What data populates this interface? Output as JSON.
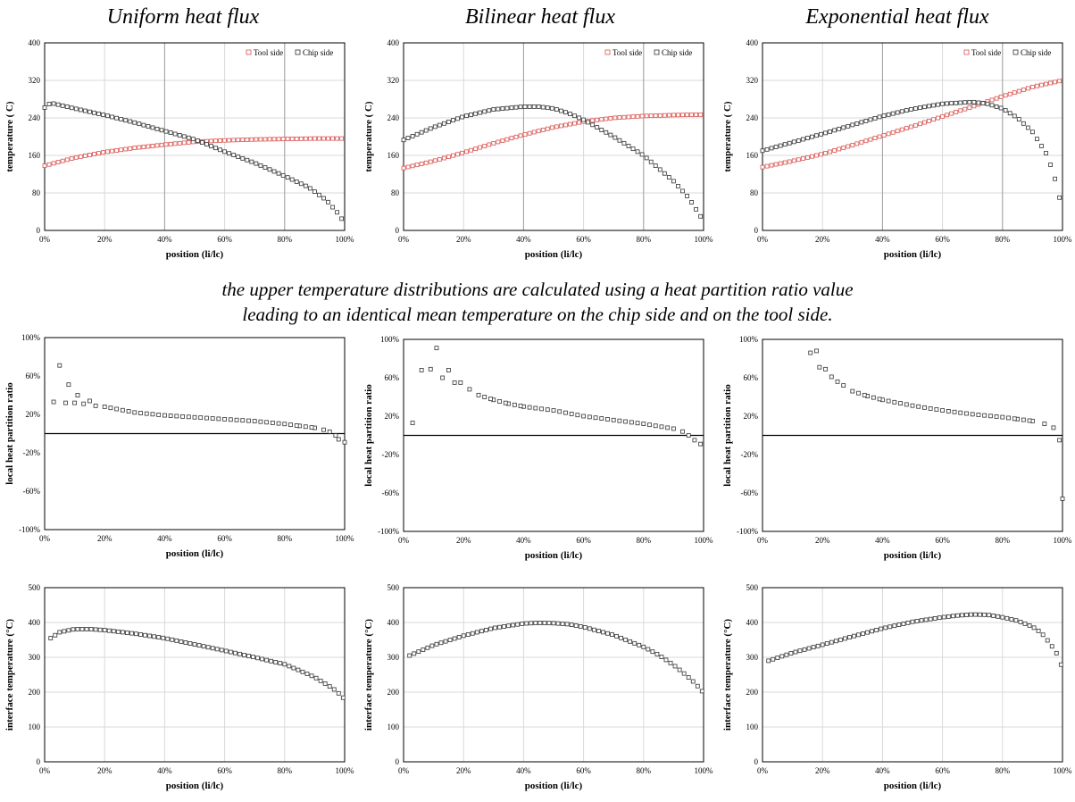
{
  "column_titles": [
    "Uniform heat flux",
    "Bilinear heat flux",
    "Exponential heat flux"
  ],
  "caption": {
    "line1": "the upper temperature distributions are calculated using a heat partition ratio value",
    "line2": "leading to an identical mean temperature on the chip side and on the tool side."
  },
  "colors": {
    "tool_side": "#d9534f",
    "chip_side": "#333333",
    "grid": "#d9d9d9",
    "axis": "#000000"
  },
  "chart_data": [
    {
      "type": "scatter",
      "xlabel": "position (li/lc)",
      "ylabel": "temperature ( C)",
      "xlim": [
        0,
        1
      ],
      "ylim": [
        0,
        400
      ],
      "yticks": [
        0,
        80,
        160,
        240,
        320,
        400
      ],
      "xticks": [
        0,
        0.2,
        0.4,
        0.6,
        0.8,
        1.0
      ],
      "xtick_labels": [
        "0%",
        "20%",
        "40%",
        "60%",
        "80%",
        "100%"
      ],
      "ytick_labels": [
        "0",
        "80",
        "160",
        "240",
        "320",
        "400"
      ],
      "legend_position": "top-right",
      "grid": true,
      "series": [
        {
          "name": "Tool side",
          "x": [
            0,
            0.1,
            0.2,
            0.3,
            0.4,
            0.5,
            0.6,
            0.7,
            0.8,
            0.9,
            1.0
          ],
          "y": [
            138,
            155,
            167,
            176,
            183,
            189,
            192,
            194,
            195,
            196,
            196
          ]
        },
        {
          "name": "Chip side",
          "x": [
            0,
            0.02,
            0.1,
            0.2,
            0.3,
            0.4,
            0.5,
            0.6,
            0.7,
            0.8,
            0.88,
            0.94,
            0.98,
            1.0
          ],
          "y": [
            262,
            272,
            260,
            246,
            230,
            212,
            194,
            168,
            144,
            116,
            92,
            64,
            35,
            15
          ]
        }
      ]
    },
    {
      "type": "scatter",
      "xlabel": "position (li/lc)",
      "ylabel": "temperature ( C)",
      "xlim": [
        0,
        1
      ],
      "ylim": [
        0,
        400
      ],
      "yticks": [
        0,
        80,
        160,
        240,
        320,
        400
      ],
      "xticks": [
        0,
        0.2,
        0.4,
        0.6,
        0.8,
        1.0
      ],
      "xtick_labels": [
        "0%",
        "20%",
        "40%",
        "60%",
        "80%",
        "100%"
      ],
      "ytick_labels": [
        "0",
        "80",
        "160",
        "240",
        "320",
        "400"
      ],
      "legend_position": "top-right",
      "grid": true,
      "series": [
        {
          "name": "Tool side",
          "x": [
            0,
            0.1,
            0.2,
            0.3,
            0.4,
            0.5,
            0.6,
            0.7,
            0.8,
            0.9,
            1.0
          ],
          "y": [
            133,
            148,
            166,
            186,
            204,
            220,
            232,
            240,
            244,
            246,
            247
          ]
        },
        {
          "name": "Chip side",
          "x": [
            0,
            0.1,
            0.2,
            0.3,
            0.4,
            0.45,
            0.5,
            0.55,
            0.6,
            0.7,
            0.8,
            0.9,
            0.95,
            1.0
          ],
          "y": [
            193,
            220,
            243,
            258,
            264,
            264,
            260,
            250,
            236,
            200,
            160,
            105,
            70,
            20
          ]
        }
      ]
    },
    {
      "type": "scatter",
      "xlabel": "position (li/lc)",
      "ylabel": "temperature ( C)",
      "xlim": [
        0,
        1
      ],
      "ylim": [
        0,
        400
      ],
      "yticks": [
        0,
        80,
        160,
        240,
        320,
        400
      ],
      "xticks": [
        0,
        0.2,
        0.4,
        0.6,
        0.8,
        1.0
      ],
      "xtick_labels": [
        "0%",
        "20%",
        "40%",
        "60%",
        "80%",
        "100%"
      ],
      "ytick_labels": [
        "0",
        "80",
        "160",
        "240",
        "320",
        "400"
      ],
      "legend_position": "top-right",
      "grid": true,
      "series": [
        {
          "name": "Tool side",
          "x": [
            0,
            0.1,
            0.2,
            0.3,
            0.4,
            0.5,
            0.6,
            0.7,
            0.8,
            0.9,
            1.0
          ],
          "y": [
            135,
            148,
            163,
            182,
            202,
            222,
            243,
            264,
            286,
            306,
            320
          ]
        },
        {
          "name": "Chip side",
          "x": [
            0,
            0.1,
            0.2,
            0.3,
            0.4,
            0.5,
            0.6,
            0.7,
            0.75,
            0.8,
            0.85,
            0.9,
            0.95,
            0.98,
            1.0
          ],
          "y": [
            170,
            188,
            206,
            225,
            244,
            259,
            270,
            274,
            270,
            260,
            240,
            210,
            160,
            100,
            40
          ]
        }
      ]
    },
    {
      "type": "scatter",
      "xlabel": "position (li/lc)",
      "ylabel": "local heat partition ratio",
      "xlim": [
        0,
        1
      ],
      "ylim": [
        -1,
        1
      ],
      "yticks": [
        -1,
        -0.6,
        -0.2,
        0.2,
        0.6,
        1
      ],
      "xticks": [
        0,
        0.2,
        0.4,
        0.6,
        0.8,
        1.0
      ],
      "xtick_labels": [
        "0%",
        "20%",
        "40%",
        "60%",
        "80%",
        "100%"
      ],
      "ytick_labels": [
        "-100%",
        "-60%",
        "-20%",
        "20%",
        "60%",
        "100%"
      ],
      "grid": false,
      "zero_line": true,
      "series": [
        {
          "x": [
            0.03,
            0.05,
            0.07,
            0.08,
            0.1,
            0.11,
            0.13,
            0.15,
            0.17,
            0.2,
            0.3,
            0.4,
            0.5,
            0.6,
            0.7,
            0.8,
            0.85,
            0.9,
            0.93,
            0.95,
            0.97,
            0.98,
            1.0
          ],
          "y": [
            0.33,
            0.71,
            0.32,
            0.51,
            0.32,
            0.4,
            0.31,
            0.34,
            0.29,
            0.28,
            0.22,
            0.19,
            0.17,
            0.15,
            0.13,
            0.1,
            0.08,
            0.06,
            0.04,
            0.02,
            -0.02,
            -0.06,
            -0.09
          ]
        }
      ]
    },
    {
      "type": "scatter",
      "xlabel": "position (li/lc)",
      "ylabel": "local heat partition ratio",
      "xlim": [
        0,
        1
      ],
      "ylim": [
        -1,
        1
      ],
      "yticks": [
        -1,
        -0.6,
        -0.2,
        0.2,
        0.6,
        1
      ],
      "xticks": [
        0,
        0.2,
        0.4,
        0.6,
        0.8,
        1.0
      ],
      "xtick_labels": [
        "0%",
        "20%",
        "40%",
        "60%",
        "80%",
        "100%"
      ],
      "ytick_labels": [
        "-100%",
        "-60%",
        "-20%",
        "20%",
        "60%",
        "100%"
      ],
      "grid": false,
      "zero_line": true,
      "series": [
        {
          "x": [
            0.03,
            0.06,
            0.09,
            0.11,
            0.13,
            0.15,
            0.17,
            0.19,
            0.22,
            0.25,
            0.3,
            0.35,
            0.4,
            0.5,
            0.6,
            0.7,
            0.8,
            0.9,
            0.93,
            0.95,
            0.97,
            0.99
          ],
          "y": [
            0.13,
            0.68,
            0.69,
            0.91,
            0.6,
            0.68,
            0.55,
            0.55,
            0.48,
            0.42,
            0.37,
            0.33,
            0.3,
            0.26,
            0.2,
            0.16,
            0.12,
            0.07,
            0.04,
            0.0,
            -0.05,
            -0.09
          ]
        }
      ]
    },
    {
      "type": "scatter",
      "xlabel": "position (li/lc)",
      "ylabel": "local heat partition ratio",
      "xlim": [
        0,
        1
      ],
      "ylim": [
        -1,
        1
      ],
      "yticks": [
        -1,
        -0.6,
        -0.2,
        0.2,
        0.6,
        1
      ],
      "xticks": [
        0,
        0.2,
        0.4,
        0.6,
        0.8,
        1.0
      ],
      "xtick_labels": [
        "0%",
        "20%",
        "40%",
        "60%",
        "80%",
        "100%"
      ],
      "ytick_labels": [
        "-100%",
        "-60%",
        "-20%",
        "20%",
        "60%",
        "100%"
      ],
      "grid": false,
      "zero_line": true,
      "series": [
        {
          "x": [
            0.16,
            0.18,
            0.19,
            0.21,
            0.23,
            0.25,
            0.27,
            0.3,
            0.35,
            0.4,
            0.5,
            0.6,
            0.7,
            0.8,
            0.85,
            0.9,
            0.94,
            0.97,
            0.99,
            1.0
          ],
          "y": [
            0.86,
            0.88,
            0.71,
            0.69,
            0.61,
            0.56,
            0.52,
            0.46,
            0.41,
            0.37,
            0.31,
            0.26,
            0.22,
            0.19,
            0.17,
            0.15,
            0.12,
            0.08,
            -0.05,
            -0.66
          ]
        }
      ]
    },
    {
      "type": "scatter",
      "xlabel": "position (li/lc)",
      "ylabel": "interface temperature (°C)",
      "xlim": [
        0,
        1
      ],
      "ylim": [
        0,
        500
      ],
      "yticks": [
        0,
        100,
        200,
        300,
        400,
        500
      ],
      "xticks": [
        0,
        0.2,
        0.4,
        0.6,
        0.8,
        1.0
      ],
      "xtick_labels": [
        "0%",
        "20%",
        "40%",
        "60%",
        "80%",
        "100%"
      ],
      "ytick_labels": [
        "0",
        "100",
        "200",
        "300",
        "400",
        "500"
      ],
      "grid": true,
      "series": [
        {
          "x": [
            0.02,
            0.05,
            0.1,
            0.15,
            0.2,
            0.3,
            0.4,
            0.5,
            0.6,
            0.7,
            0.8,
            0.85,
            0.9,
            0.94,
            0.97,
            1.0
          ],
          "y": [
            355,
            372,
            381,
            381,
            378,
            368,
            355,
            337,
            319,
            300,
            280,
            262,
            243,
            222,
            205,
            180
          ]
        }
      ]
    },
    {
      "type": "scatter",
      "xlabel": "position (li/lc)",
      "ylabel": "interface temperature (°C)",
      "xlim": [
        0,
        1
      ],
      "ylim": [
        0,
        500
      ],
      "yticks": [
        0,
        100,
        200,
        300,
        400,
        500
      ],
      "xticks": [
        0,
        0.2,
        0.4,
        0.6,
        0.8,
        1.0
      ],
      "xtick_labels": [
        "0%",
        "20%",
        "40%",
        "60%",
        "80%",
        "100%"
      ],
      "ytick_labels": [
        "0",
        "100",
        "200",
        "300",
        "400",
        "500"
      ],
      "grid": true,
      "series": [
        {
          "x": [
            0.02,
            0.1,
            0.2,
            0.3,
            0.4,
            0.45,
            0.5,
            0.55,
            0.6,
            0.7,
            0.8,
            0.85,
            0.9,
            0.94,
            0.97,
            1.0
          ],
          "y": [
            305,
            335,
            362,
            384,
            397,
            399,
            398,
            395,
            387,
            364,
            330,
            307,
            278,
            250,
            227,
            198
          ]
        }
      ]
    },
    {
      "type": "scatter",
      "xlabel": "position (li/lc)",
      "ylabel": "interface temperature (°C)",
      "xlim": [
        0,
        1
      ],
      "ylim": [
        0,
        500
      ],
      "yticks": [
        0,
        100,
        200,
        300,
        400,
        500
      ],
      "xticks": [
        0,
        0.2,
        0.4,
        0.6,
        0.8,
        1.0
      ],
      "xtick_labels": [
        "0%",
        "20%",
        "40%",
        "60%",
        "80%",
        "100%"
      ],
      "ytick_labels": [
        "0",
        "100",
        "200",
        "300",
        "400",
        "500"
      ],
      "grid": true,
      "series": [
        {
          "x": [
            0.02,
            0.1,
            0.2,
            0.3,
            0.4,
            0.5,
            0.6,
            0.65,
            0.7,
            0.75,
            0.8,
            0.85,
            0.9,
            0.93,
            0.96,
            0.98,
            1.0
          ],
          "y": [
            290,
            313,
            336,
            360,
            383,
            402,
            415,
            420,
            423,
            422,
            415,
            405,
            388,
            370,
            338,
            312,
            268
          ]
        }
      ]
    }
  ]
}
